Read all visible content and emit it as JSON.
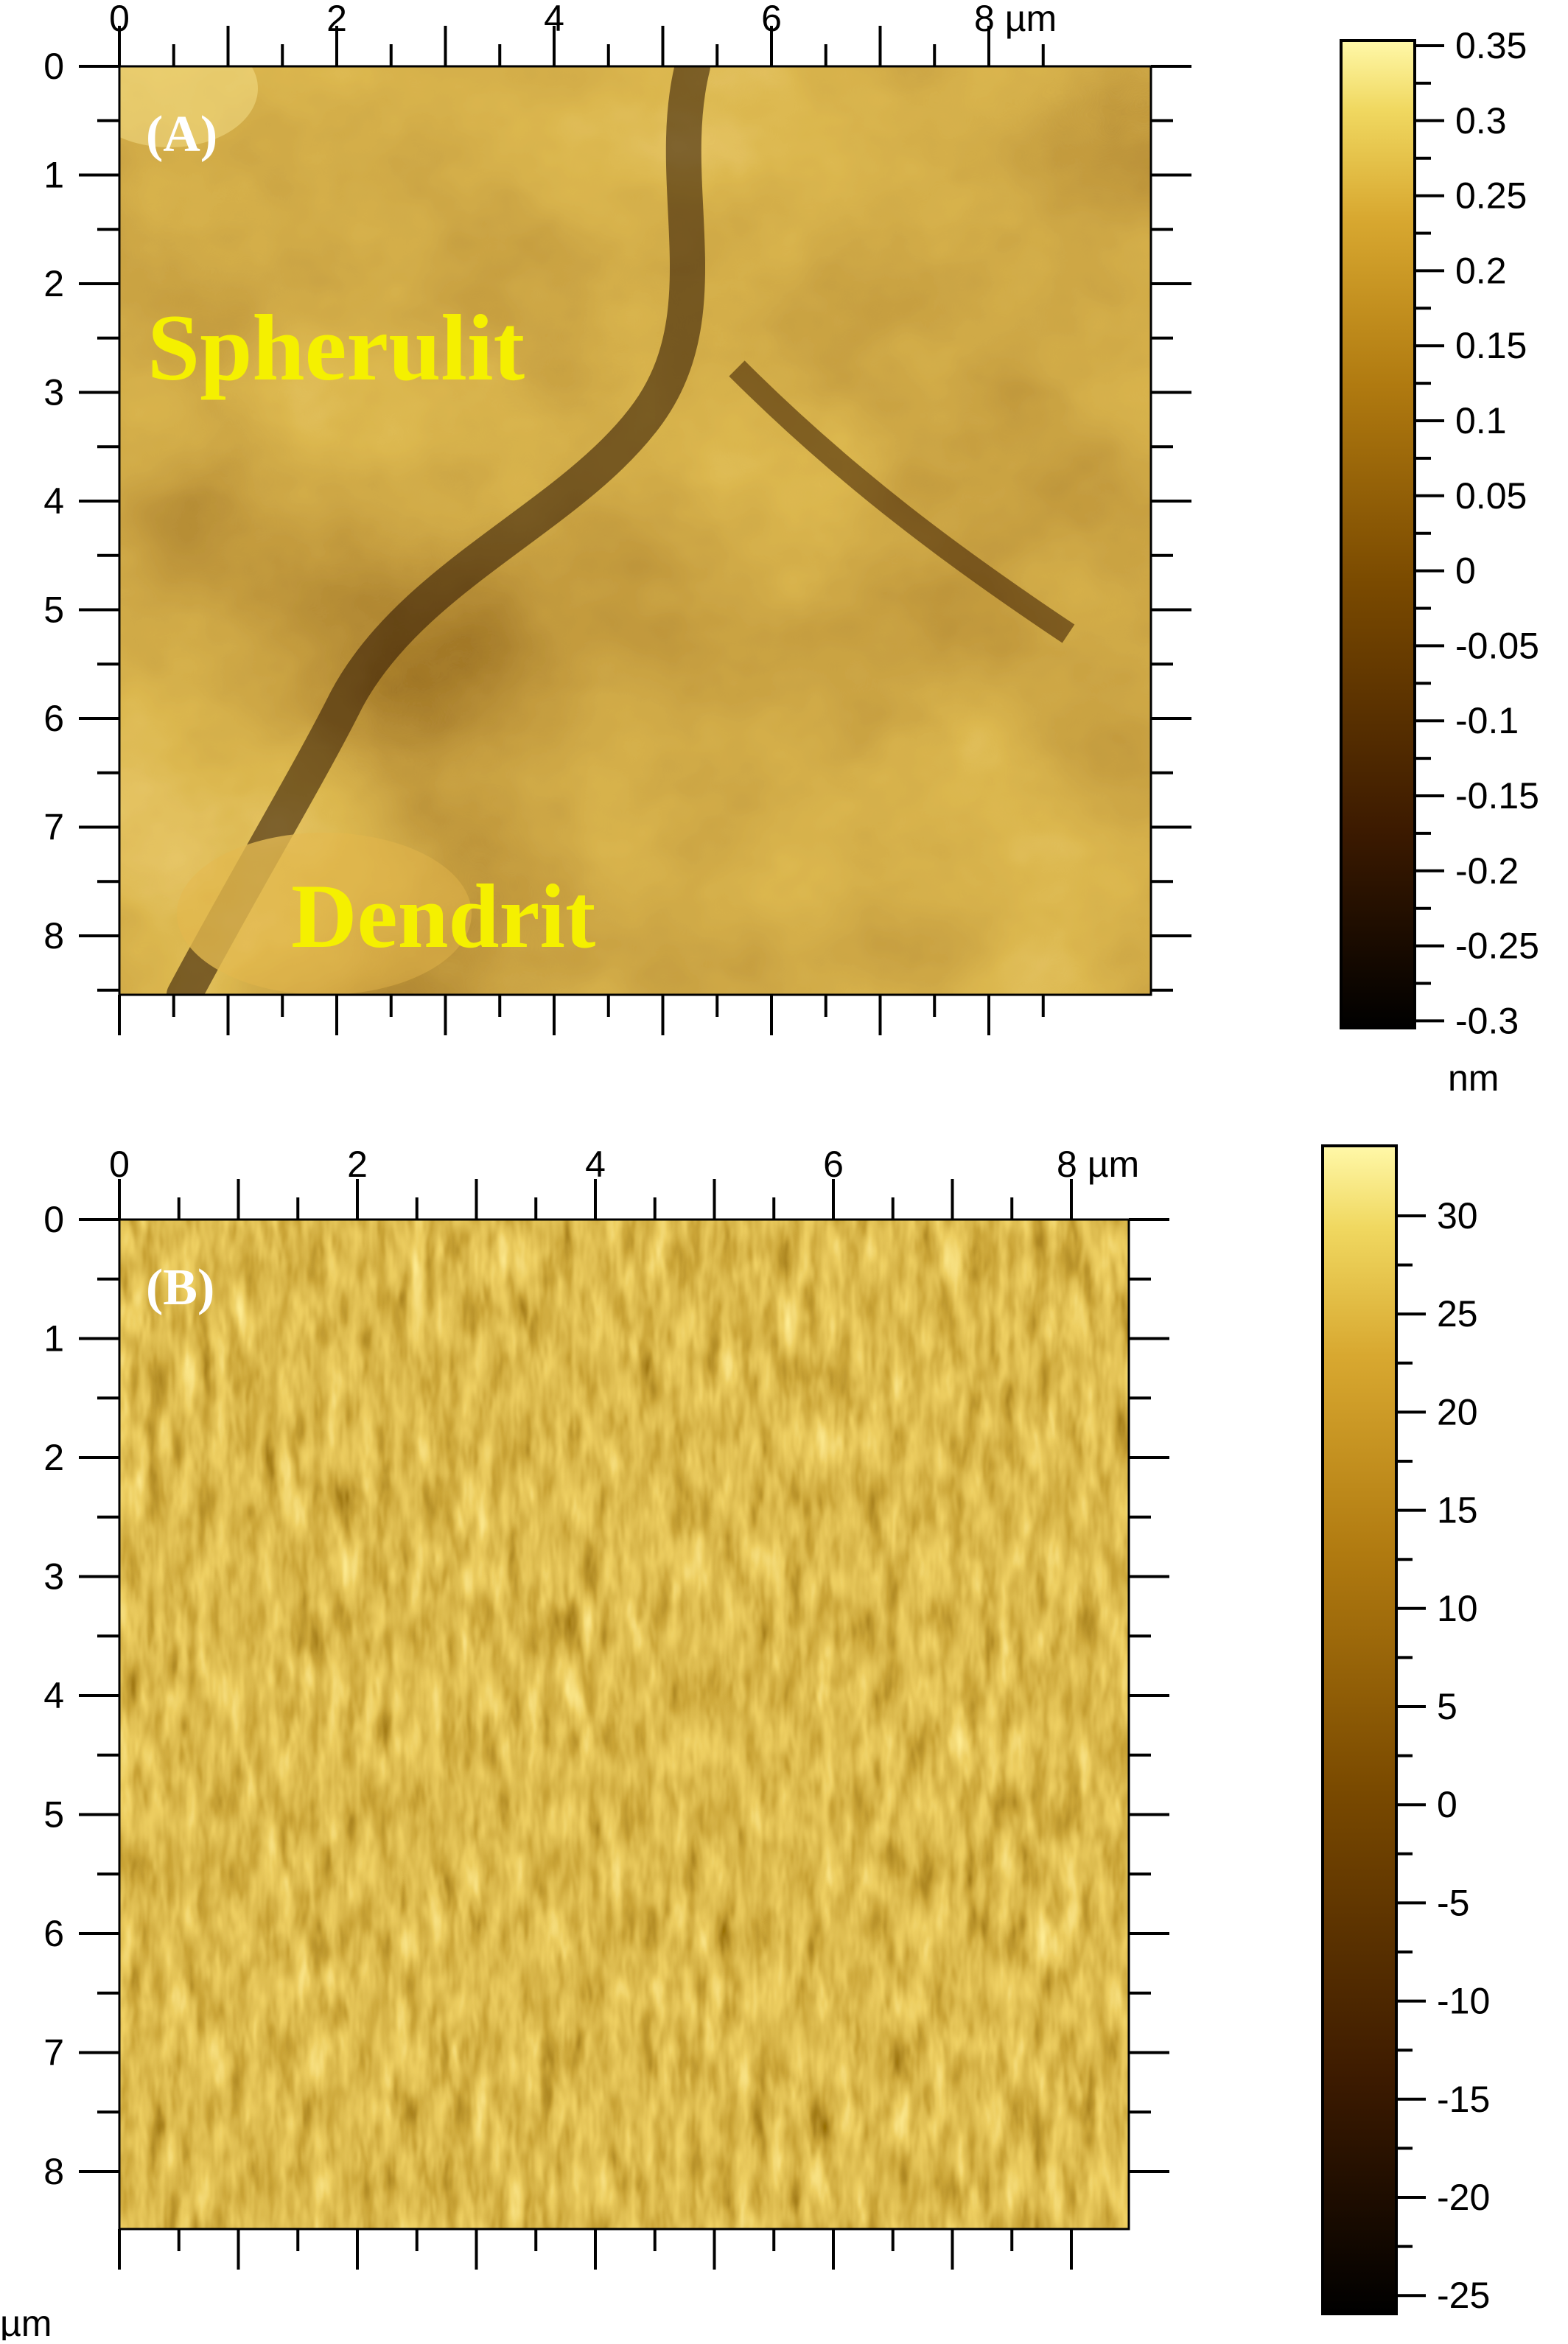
{
  "panels": [
    {
      "id": "A",
      "panel_label": "(A)",
      "annotations": [
        "Spherulit",
        "Dendrit"
      ],
      "x_ticks": [
        "0",
        "2",
        "4",
        "6",
        "8 µm"
      ],
      "y_ticks": [
        "0",
        "1",
        "2",
        "3",
        "4",
        "5",
        "6",
        "7",
        "8"
      ],
      "colorbar": {
        "ticks": [
          "0.35",
          "0.3",
          "0.25",
          "0.2",
          "0.15",
          "0.1",
          "0.05",
          "0",
          "-0.05",
          "-0.1",
          "-0.15",
          "-0.2",
          "-0.25",
          "-0.3"
        ],
        "unit": "nm",
        "range": [
          -0.3,
          0.35
        ]
      },
      "texture": "smooth"
    },
    {
      "id": "B",
      "panel_label": "(B)",
      "x_ticks": [
        "0",
        "2",
        "4",
        "6",
        "8 µm"
      ],
      "y_ticks": [
        "0",
        "1",
        "2",
        "3",
        "4",
        "5",
        "6",
        "7",
        "8"
      ],
      "y_unit": "µm",
      "colorbar": {
        "ticks": [
          "30",
          "25",
          "20",
          "15",
          "10",
          "5",
          "0",
          "-5",
          "-10",
          "-15",
          "-20",
          "-25"
        ],
        "range": [
          -25,
          33
        ]
      },
      "texture": "lamellar"
    }
  ],
  "colormap": [
    "#000000",
    "#3c1a00",
    "#7a4a00",
    "#b07a10",
    "#d8a830",
    "#f0d860",
    "#fff8a8"
  ]
}
